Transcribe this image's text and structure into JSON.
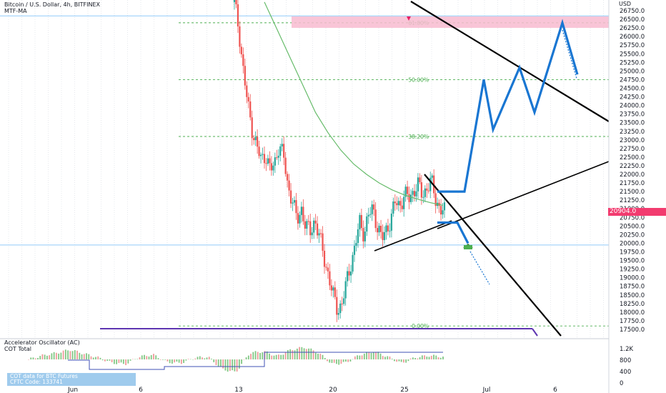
{
  "header": {
    "symbol_line": "Bitcoin / U.S. Dollar, 4h, BITFINEX",
    "indicator": "MTF-MA",
    "sub_indicator": "Accelerator Oscillator (AC)",
    "sub_indicator_2": "COT Total"
  },
  "cot_box": {
    "line1": "COT data for BTC Futures",
    "line2": "CFTC Code: 133741"
  },
  "price_axis": {
    "currency": "USD",
    "ticks": [
      "26750.0",
      "26500.0",
      "26250.0",
      "26000.0",
      "25750.0",
      "25500.0",
      "25250.0",
      "25000.0",
      "24750.0",
      "24500.0",
      "24250.0",
      "24000.0",
      "23750.0",
      "23500.0",
      "23250.0",
      "23000.0",
      "22750.0",
      "22500.0",
      "22250.0",
      "22000.0",
      "21750.0",
      "21500.0",
      "21250.0",
      "21000.0",
      "20750.0",
      "20500.0",
      "20250.0",
      "20000.0",
      "19750.0",
      "19500.0",
      "19250.0",
      "19000.0",
      "18750.0",
      "18500.0",
      "18250.0",
      "18000.0",
      "17750.0",
      "17500.0"
    ],
    "current_price": "20904.0",
    "current_color": "#f23b6f"
  },
  "sub_axis": {
    "ticks": [
      "1.2K",
      "800",
      "400",
      "0"
    ]
  },
  "time_axis": {
    "ticks": [
      "Jun",
      "6",
      "13",
      "20",
      "25",
      "Jul",
      "6"
    ]
  },
  "fib_levels": [
    {
      "label": "61.80%",
      "price": 26400
    },
    {
      "label": "50.00%",
      "price": 24750
    },
    {
      "label": "38.20%",
      "price": 23100
    },
    {
      "label": "0.00%",
      "price": 17600
    }
  ],
  "chart_data": {
    "type": "candlestick",
    "timeframe": "4h",
    "ylim": [
      17400,
      27000
    ],
    "up_color": "#26a69a",
    "down_color": "#ef5350",
    "ma_color": "#66bb6a",
    "projection_color": "#1976d2",
    "horizontal_levels": [
      26600,
      19950
    ],
    "close_path": [
      27000,
      26200,
      25000,
      24000,
      23300,
      22800,
      22400,
      22600,
      22100,
      22300,
      22900,
      22500,
      21600,
      21300,
      20600,
      21000,
      20500,
      20300,
      20700,
      20200,
      19600,
      19100,
      18500,
      18100,
      18200,
      18800,
      19400,
      19900,
      20600,
      20300,
      20800,
      21000,
      20500,
      20100,
      20400,
      20700,
      21200,
      21100,
      21400,
      21300,
      21500,
      21700,
      21400,
      21600,
      21800,
      21300,
      21000,
      20900
    ],
    "ma_path": [
      27000,
      26200,
      25400,
      24600,
      23800,
      23200,
      22700,
      22300,
      22000,
      21750,
      21550,
      21400,
      21280,
      21180,
      21100
    ],
    "bullish_projection": [
      21500,
      21500,
      24750,
      23300,
      25100,
      23800,
      26400,
      24900
    ],
    "bearish_projection": [
      20600,
      20600,
      20000,
      18800
    ],
    "oscillator_values": [
      0,
      120,
      200,
      300,
      180,
      60,
      -100,
      -150,
      80,
      150,
      -80,
      -120,
      50,
      80,
      -300,
      -400,
      200,
      250,
      100,
      300,
      380,
      200,
      -150,
      -100,
      150,
      250,
      80,
      -120,
      60,
      120,
      80
    ]
  }
}
